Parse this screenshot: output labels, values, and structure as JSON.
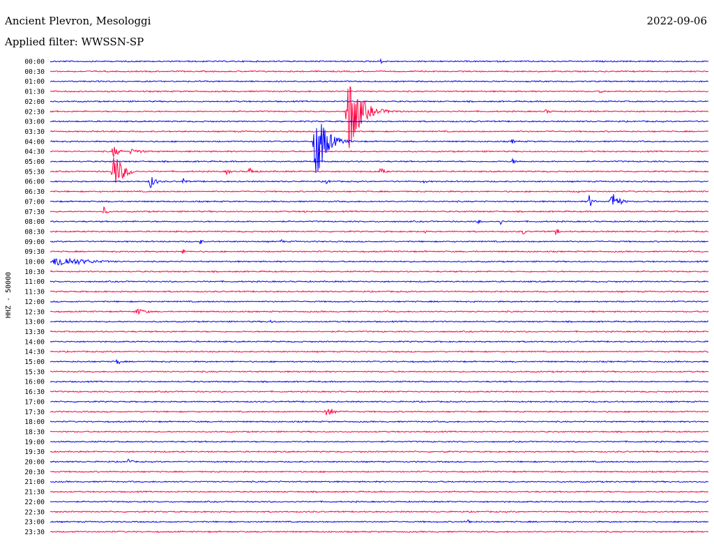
{
  "header": {
    "station": "Ancient Plevron, Mesologgi",
    "filter": "Applied filter: WWSSN-SP",
    "date": "2022-09-06"
  },
  "chart_data": {
    "type": "line",
    "title": "Ancient Plevron, Mesologgi",
    "subtitle": "Applied filter: WWSSN-SP",
    "date": "2022-09-06",
    "ylabel": "HHZ - 50000",
    "colors": [
      "#0000ff",
      "#ff0040"
    ],
    "row_labels": [
      "00:00",
      "00:30",
      "01:00",
      "01:30",
      "02:00",
      "02:30",
      "03:00",
      "03:30",
      "04:00",
      "04:30",
      "05:00",
      "05:30",
      "06:00",
      "06:30",
      "07:00",
      "07:30",
      "08:00",
      "08:30",
      "09:00",
      "09:30",
      "10:00",
      "10:30",
      "11:00",
      "11:30",
      "12:00",
      "12:30",
      "13:00",
      "13:30",
      "14:00",
      "14:30",
      "15:00",
      "15:30",
      "16:00",
      "16:30",
      "17:00",
      "17:30",
      "18:00",
      "18:30",
      "19:00",
      "19:30",
      "20:00",
      "20:30",
      "21:00",
      "21:30",
      "22:00",
      "22:30",
      "23:00",
      "23:30"
    ],
    "x_minutes_per_row": 30,
    "events": [
      {
        "row": 0,
        "minute": 15.0,
        "amp": 3,
        "dur": 0.8
      },
      {
        "row": 3,
        "minute": 25.0,
        "amp": 3,
        "dur": 0.5
      },
      {
        "row": 5,
        "minute": 13.5,
        "amp": 65,
        "dur": 1.5
      },
      {
        "row": 5,
        "minute": 14.0,
        "amp": 10,
        "dur": 2.5
      },
      {
        "row": 5,
        "minute": 22.5,
        "amp": 3,
        "dur": 1.0
      },
      {
        "row": 8,
        "minute": 12.0,
        "amp": 70,
        "dur": 1.2
      },
      {
        "row": 8,
        "minute": 12.5,
        "amp": 15,
        "dur": 1.5
      },
      {
        "row": 8,
        "minute": 21.0,
        "amp": 4,
        "dur": 0.5
      },
      {
        "row": 9,
        "minute": 2.8,
        "amp": 10,
        "dur": 0.8
      },
      {
        "row": 9,
        "minute": 3.5,
        "amp": 4,
        "dur": 2.0
      },
      {
        "row": 10,
        "minute": 21.0,
        "amp": 4,
        "dur": 0.8
      },
      {
        "row": 11,
        "minute": 2.8,
        "amp": 30,
        "dur": 1.2
      },
      {
        "row": 11,
        "minute": 8.0,
        "amp": 6,
        "dur": 0.5
      },
      {
        "row": 11,
        "minute": 9.0,
        "amp": 6,
        "dur": 0.8
      },
      {
        "row": 11,
        "minute": 15.0,
        "amp": 6,
        "dur": 0.6
      },
      {
        "row": 12,
        "minute": 4.5,
        "amp": 10,
        "dur": 0.8
      },
      {
        "row": 12,
        "minute": 6.0,
        "amp": 6,
        "dur": 0.5
      },
      {
        "row": 12,
        "minute": 12.5,
        "amp": 5,
        "dur": 0.5
      },
      {
        "row": 12,
        "minute": 17.0,
        "amp": 3,
        "dur": 0.5
      },
      {
        "row": 13,
        "minute": 24.0,
        "amp": 3,
        "dur": 0.5
      },
      {
        "row": 14,
        "minute": 24.5,
        "amp": 12,
        "dur": 0.5
      },
      {
        "row": 14,
        "minute": 25.5,
        "amp": 15,
        "dur": 1.0
      },
      {
        "row": 15,
        "minute": 2.4,
        "amp": 8,
        "dur": 0.4
      },
      {
        "row": 15,
        "minute": 11.5,
        "amp": 5,
        "dur": 0.3
      },
      {
        "row": 16,
        "minute": 19.5,
        "amp": 5,
        "dur": 0.3
      },
      {
        "row": 16,
        "minute": 20.5,
        "amp": 5,
        "dur": 0.3
      },
      {
        "row": 17,
        "minute": 17.0,
        "amp": 5,
        "dur": 0.3
      },
      {
        "row": 17,
        "minute": 21.5,
        "amp": 6,
        "dur": 0.4
      },
      {
        "row": 17,
        "minute": 23.0,
        "amp": 5,
        "dur": 0.5
      },
      {
        "row": 18,
        "minute": 6.8,
        "amp": 6,
        "dur": 0.3
      },
      {
        "row": 18,
        "minute": 10.5,
        "amp": 5,
        "dur": 0.3
      },
      {
        "row": 19,
        "minute": 6.0,
        "amp": 5,
        "dur": 0.4
      },
      {
        "row": 20,
        "minute": 0.0,
        "amp": 8,
        "dur": 4.0
      },
      {
        "row": 25,
        "minute": 3.8,
        "amp": 5,
        "dur": 1.5
      },
      {
        "row": 26,
        "minute": 10.0,
        "amp": 3,
        "dur": 0.5
      },
      {
        "row": 30,
        "minute": 3.0,
        "amp": 6,
        "dur": 0.5
      },
      {
        "row": 35,
        "minute": 12.5,
        "amp": 9,
        "dur": 1.0
      },
      {
        "row": 39,
        "minute": 18.0,
        "amp": 4,
        "dur": 0.2
      },
      {
        "row": 39,
        "minute": 29.5,
        "amp": 4,
        "dur": 0.2
      },
      {
        "row": 40,
        "minute": 3.5,
        "amp": 6,
        "dur": 0.5
      },
      {
        "row": 46,
        "minute": 19.0,
        "amp": 4,
        "dur": 0.5
      }
    ]
  }
}
